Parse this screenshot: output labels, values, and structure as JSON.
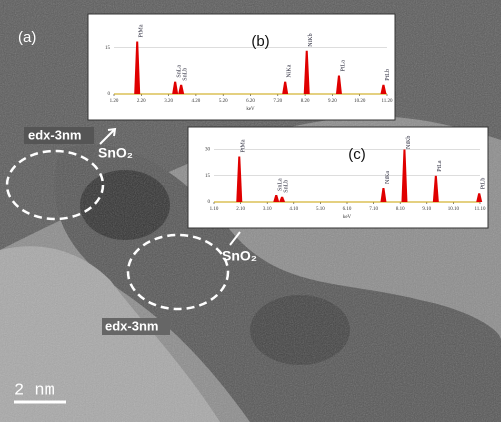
{
  "panel_label": "(a)",
  "annotations": {
    "edx_top": "edx-3nm",
    "sno2_top": "SnO₂",
    "sno2_bottom": "SnO₂",
    "edx_bottom": "edx-3nm"
  },
  "scale_bar": "2 nm",
  "chart_data": [
    {
      "type": "spectrum",
      "title": "(b)",
      "x_label": "keV",
      "color": "#e00000",
      "x": [
        2.05,
        3.44,
        3.66,
        7.47,
        8.26,
        9.44,
        11.07
      ],
      "labels": [
        "PtMa",
        "SnLa",
        "SnLb",
        "NiKa",
        "NiKb",
        "PtLa",
        "PtLb"
      ],
      "values": [
        17,
        4,
        3,
        4,
        14,
        6,
        3
      ],
      "xlim": [
        1.2,
        11.2
      ],
      "xticks": [
        {
          "value": 1.2,
          "label": "1.20"
        },
        {
          "value": 2.2,
          "label": "2.20"
        },
        {
          "value": 3.2,
          "label": "3.20"
        },
        {
          "value": 4.2,
          "label": "4.20"
        },
        {
          "value": 5.2,
          "label": "5.20"
        },
        {
          "value": 6.2,
          "label": "6.20"
        },
        {
          "value": 7.2,
          "label": "7.20"
        },
        {
          "value": 8.2,
          "label": "8.20"
        },
        {
          "value": 9.2,
          "label": "9.20"
        },
        {
          "value": 10.2,
          "label": "10.20"
        },
        {
          "value": 11.2,
          "label": "11.20"
        }
      ],
      "ylim": [
        0,
        22
      ],
      "yticks": [
        0,
        15
      ]
    },
    {
      "type": "spectrum",
      "title": "(c)",
      "x_label": "keV",
      "color": "#e00000",
      "x": [
        2.05,
        3.44,
        3.66,
        7.47,
        8.26,
        9.44,
        11.07
      ],
      "labels": [
        "PtMa",
        "SnLa",
        "SnLb",
        "NiKa",
        "NiKb",
        "PtLa",
        "PtLb"
      ],
      "values": [
        26,
        4,
        3,
        8,
        30,
        15,
        5
      ],
      "xlim": [
        1.1,
        11.1
      ],
      "xticks": [
        {
          "value": 1.1,
          "label": "1.10"
        },
        {
          "value": 2.1,
          "label": "2.10"
        },
        {
          "value": 3.1,
          "label": "3.10"
        },
        {
          "value": 4.1,
          "label": "4.10"
        },
        {
          "value": 5.1,
          "label": "5.10"
        },
        {
          "value": 6.1,
          "label": "6.10"
        },
        {
          "value": 7.1,
          "label": "7.10"
        },
        {
          "value": 8.1,
          "label": "8.10"
        },
        {
          "value": 9.1,
          "label": "9.10"
        },
        {
          "value": 10.1,
          "label": "10.10"
        },
        {
          "value": 11.1,
          "label": "11.10"
        }
      ],
      "ylim": [
        0,
        36
      ],
      "yticks": [
        0,
        15,
        30
      ]
    }
  ]
}
